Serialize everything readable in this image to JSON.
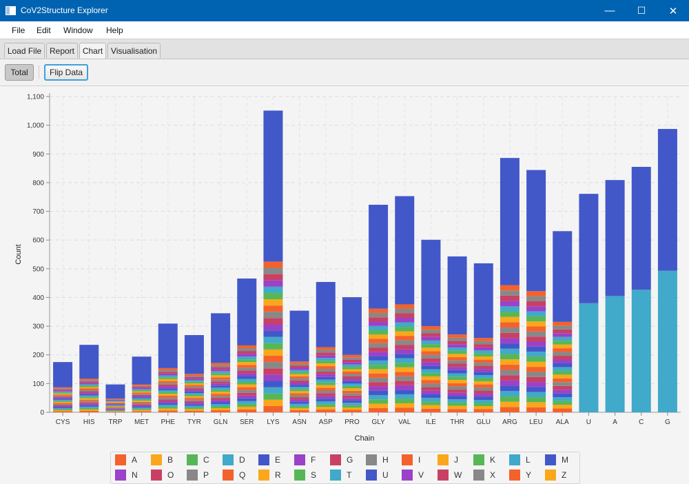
{
  "window": {
    "title": "CoV2Structure Explorer",
    "controls": {
      "minimize": "—",
      "maximize": "☐",
      "close": "✕"
    }
  },
  "menu": [
    "File",
    "Edit",
    "Window",
    "Help"
  ],
  "tabs": [
    {
      "label": "Load File",
      "active": false
    },
    {
      "label": "Report",
      "active": false
    },
    {
      "label": "Chart",
      "active": true
    },
    {
      "label": "Visualisation",
      "active": false
    }
  ],
  "toolbar": {
    "total_label": "Total",
    "flip_label": "Flip Data"
  },
  "colors": {
    "A": "#f3622d",
    "B": "#fba71b",
    "C": "#57b757",
    "D": "#41a9c9",
    "E": "#4258c9",
    "F": "#9a42c8",
    "G": "#c84164",
    "H": "#888888",
    "I": "#f3622d",
    "J": "#fba71b",
    "K": "#57b757",
    "L": "#41a9c9",
    "M": "#4258c9",
    "N": "#9a42c8",
    "O": "#c84164",
    "P": "#888888",
    "Q": "#f3622d",
    "R": "#fba71b",
    "S": "#57b757",
    "T": "#41a9c9",
    "U": "#4258c9",
    "V": "#9a42c8",
    "W": "#c84164",
    "X": "#888888",
    "Y": "#f3622d",
    "Z": "#fba71b"
  },
  "chart_data": {
    "type": "bar",
    "stacked": true,
    "xlabel": "Chain",
    "ylabel": "Count",
    "ylim": [
      0,
      1100
    ],
    "yticks": [
      "0",
      "100",
      "200",
      "300",
      "400",
      "500",
      "600",
      "700",
      "800",
      "900",
      "1,000",
      "1,100"
    ],
    "grid": true,
    "legend_position": "bottom",
    "categories": [
      "CYS",
      "HIS",
      "TRP",
      "MET",
      "PHE",
      "TYR",
      "GLN",
      "SER",
      "LYS",
      "ASN",
      "ASP",
      "PRO",
      "GLY",
      "VAL",
      "ILE",
      "THR",
      "GLU",
      "ARG",
      "LEU",
      "ALA",
      "U",
      "A",
      "C",
      "G"
    ],
    "totals": [
      175,
      235,
      97,
      194,
      309,
      269,
      345,
      466,
      1051,
      354,
      454,
      401,
      723,
      753,
      601,
      543,
      519,
      886,
      844,
      631,
      761,
      809,
      855,
      987
    ],
    "stacked_portion": [
      87,
      117,
      48,
      97,
      154,
      134,
      172,
      233,
      525,
      177,
      227,
      200,
      361,
      376,
      300,
      271,
      259,
      443,
      422,
      315,
      0,
      0,
      0,
      0
    ],
    "series_names": [
      "A",
      "B",
      "C",
      "D",
      "E",
      "F",
      "G",
      "H",
      "I",
      "J",
      "K",
      "L",
      "M",
      "N",
      "O",
      "P",
      "Q",
      "R",
      "S",
      "T",
      "U",
      "V",
      "W",
      "X",
      "Y",
      "Z"
    ],
    "rna_series": {
      "T": [
        0,
        0,
        0,
        0,
        0,
        0,
        0,
        0,
        0,
        0,
        0,
        0,
        0,
        0,
        0,
        0,
        0,
        0,
        0,
        0,
        380,
        405,
        427,
        493
      ]
    }
  }
}
